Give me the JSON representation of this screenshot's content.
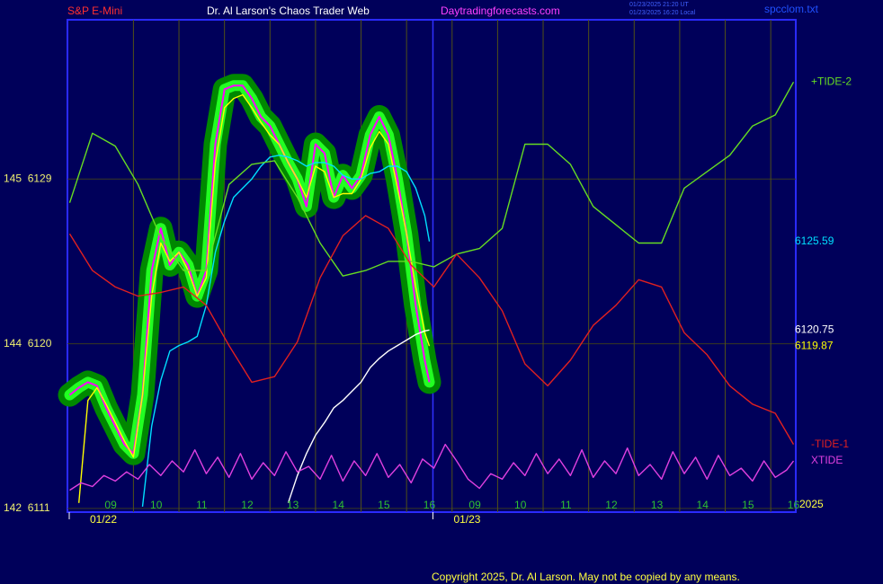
{
  "chart_data": {
    "type": "line",
    "instrument": "S&P E-Mini",
    "title": "Dr. Al Larson's Chaos Trader Web",
    "site": "Daytradingforecasts.com",
    "timestamps": [
      "01/23/2025 21:20 UT",
      "01/23/2025 16:20 Local"
    ],
    "file": "spcclom.txt",
    "year": "2025",
    "copyright": "Copyright 2025, Dr. Al Larson. May not be copied by any means.",
    "dates": [
      "01/22",
      "01/23"
    ],
    "xlim": [
      8.05,
      24.05
    ],
    "ylim": [
      6110.8,
      6137.7
    ],
    "xticks": [
      {
        "value": 9,
        "label": "09"
      },
      10,
      11,
      12,
      13,
      14,
      15,
      16,
      {
        "value": 17,
        "label": "09"
      },
      {
        "value": 18,
        "label": "10"
      },
      {
        "value": 19,
        "label": "11"
      },
      {
        "value": 20,
        "label": "12"
      },
      {
        "value": 21,
        "label": "13"
      },
      {
        "value": 22,
        "label": "14"
      },
      {
        "value": 23,
        "label": "15"
      },
      {
        "value": 24,
        "label": "16"
      }
    ],
    "yticks": [
      {
        "value": 6111,
        "label": "142  6111"
      },
      {
        "value": 6120,
        "label": "144  6120"
      },
      {
        "value": 6129,
        "label": "145  6129"
      }
    ],
    "grid": true,
    "x": [
      8.1,
      8.3,
      8.5,
      8.7,
      8.9,
      9.1,
      9.3,
      9.5,
      9.7,
      9.9,
      10.1,
      10.3,
      10.5,
      10.7,
      10.9,
      11.1,
      11.3,
      11.5,
      11.7,
      11.9,
      12.1,
      12.3,
      12.5,
      12.7,
      12.9,
      13.1,
      13.3,
      13.5,
      13.7,
      13.9,
      14.1,
      14.3,
      14.5,
      14.7,
      14.9,
      15.1,
      15.3,
      15.5,
      15.7,
      15.9,
      16.0
    ],
    "series": [
      {
        "color": "#ff00ff",
        "glow": [
          "#008800",
          "#22ff22"
        ],
        "values": [
          6117.2,
          6117.6,
          6117.9,
          6117.7,
          6116.5,
          6115.5,
          6114.5,
          6114.0,
          6117.2,
          6124.0,
          6126.3,
          6124.3,
          6125.0,
          6124.3,
          6122.6,
          6124.0,
          6130.9,
          6133.9,
          6134.1,
          6134.1,
          6133.4,
          6132.4,
          6131.9,
          6130.9,
          6129.9,
          6129.0,
          6127.5,
          6130.9,
          6130.4,
          6128.0,
          6129.2,
          6128.5,
          6129.2,
          6131.4,
          6132.4,
          6131.4,
          6129.0,
          6126.0,
          6122.1,
          6119.1,
          6117.9
        ]
      },
      {
        "color": "#ffff00",
        "label_end": true,
        "values": [
          null,
          6111.3,
          6116.9,
          6117.6,
          6116.7,
          6115.7,
          6114.7,
          6113.8,
          6117.2,
          6122.6,
          6125.5,
          6124.5,
          6125.0,
          6124.0,
          6122.6,
          6123.6,
          6129.9,
          6132.9,
          6133.4,
          6133.6,
          6132.9,
          6132.1,
          6131.4,
          6130.9,
          6129.9,
          6129.0,
          6128.0,
          6129.7,
          6129.4,
          6128.0,
          6128.2,
          6128.2,
          6129.0,
          6130.7,
          6131.6,
          6130.9,
          6128.5,
          6126.0,
          6123.1,
          6120.6,
          6119.87
        ]
      },
      {
        "color": "#00e0ff",
        "label_end": true,
        "values": [
          null,
          null,
          null,
          null,
          null,
          null,
          null,
          null,
          6111.1,
          6115.5,
          6118.0,
          6119.6,
          6119.9,
          6120.1,
          6120.4,
          6122.1,
          6125.0,
          6126.7,
          6128.0,
          6128.5,
          6129.0,
          6129.7,
          6130.2,
          6130.3,
          6130.2,
          6130.0,
          6129.7,
          6129.9,
          6129.9,
          6129.7,
          6129.2,
          6129.0,
          6129.0,
          6129.3,
          6129.4,
          6129.7,
          6129.7,
          6129.4,
          6128.5,
          6127.0,
          6125.59
        ]
      },
      {
        "color": "#ffffff",
        "label_end": true,
        "values": [
          null,
          null,
          null,
          null,
          null,
          null,
          null,
          null,
          null,
          null,
          null,
          null,
          null,
          null,
          null,
          null,
          null,
          null,
          null,
          null,
          null,
          null,
          null,
          null,
          6111.3,
          6112.8,
          6114.0,
          6115.0,
          6115.7,
          6116.5,
          6116.9,
          6117.4,
          6117.9,
          6118.7,
          6119.2,
          6119.6,
          6119.9,
          6120.2,
          6120.5,
          6120.7,
          6120.75
        ]
      },
      {
        "name": "+TIDE-2",
        "color": "#66dd22",
        "x": [
          8.1,
          8.6,
          9.1,
          9.6,
          10.1,
          10.6,
          11.1,
          11.6,
          12.1,
          12.6,
          13.1,
          13.6,
          14.1,
          14.6,
          15.1,
          15.6,
          16.1,
          16.6,
          17.1,
          17.6,
          18.1,
          18.6,
          19.1,
          19.6,
          20.1,
          20.6,
          21.1,
          21.6,
          22.1,
          22.6,
          23.1,
          23.6,
          24.0
        ],
        "values": [
          6127.7,
          6131.5,
          6130.8,
          6128.7,
          6125.8,
          6124.0,
          6124.0,
          6128.7,
          6129.8,
          6130.0,
          6128.0,
          6125.5,
          6123.7,
          6124.0,
          6124.5,
          6124.5,
          6124.2,
          6124.9,
          6125.2,
          6126.3,
          6130.9,
          6130.9,
          6129.8,
          6127.5,
          6126.5,
          6125.5,
          6125.5,
          6128.5,
          6129.4,
          6130.3,
          6131.9,
          6132.5,
          6134.3
        ]
      },
      {
        "name": "-TIDE-1",
        "color": "#e02020",
        "x": [
          8.1,
          8.6,
          9.1,
          9.6,
          10.1,
          10.6,
          11.1,
          11.6,
          12.1,
          12.6,
          13.1,
          13.6,
          14.1,
          14.6,
          15.1,
          15.6,
          16.1,
          16.6,
          17.1,
          17.6,
          18.1,
          18.6,
          19.1,
          19.6,
          20.1,
          20.6,
          21.1,
          21.6,
          22.1,
          22.6,
          23.1,
          23.6,
          24.0
        ],
        "values": [
          6126.0,
          6124.0,
          6123.1,
          6122.6,
          6122.8,
          6123.1,
          6122.1,
          6119.9,
          6117.9,
          6118.2,
          6120.1,
          6123.6,
          6125.9,
          6127.0,
          6126.3,
          6124.3,
          6123.1,
          6124.9,
          6123.6,
          6121.8,
          6118.9,
          6117.7,
          6119.1,
          6121.0,
          6122.1,
          6123.5,
          6123.1,
          6120.6,
          6119.4,
          6117.7,
          6116.7,
          6116.2,
          6114.5
        ]
      },
      {
        "name": "XTIDE",
        "color": "#e040e0",
        "x": [
          8.1,
          8.35,
          8.6,
          8.85,
          9.1,
          9.35,
          9.6,
          9.85,
          10.1,
          10.35,
          10.6,
          10.85,
          11.1,
          11.35,
          11.6,
          11.85,
          12.1,
          12.35,
          12.6,
          12.85,
          13.1,
          13.35,
          13.6,
          13.85,
          14.1,
          14.35,
          14.6,
          14.85,
          15.1,
          15.35,
          15.6,
          15.85,
          16.1,
          16.35,
          16.6,
          16.85,
          17.1,
          17.35,
          17.6,
          17.85,
          18.1,
          18.35,
          18.6,
          18.85,
          19.1,
          19.35,
          19.6,
          19.85,
          20.1,
          20.35,
          20.6,
          20.85,
          21.1,
          21.35,
          21.6,
          21.85,
          22.1,
          22.35,
          22.6,
          22.85,
          23.1,
          23.35,
          23.6,
          23.85,
          24.0
        ],
        "values": [
          6112.0,
          6112.4,
          6112.2,
          6112.8,
          6112.5,
          6113.0,
          6112.6,
          6113.4,
          6112.8,
          6113.6,
          6113.0,
          6114.2,
          6112.9,
          6113.8,
          6112.7,
          6114.0,
          6112.6,
          6113.5,
          6112.8,
          6114.1,
          6113.0,
          6113.3,
          6112.6,
          6113.9,
          6112.5,
          6113.6,
          6112.8,
          6114.0,
          6112.7,
          6113.4,
          6112.4,
          6113.7,
          6113.2,
          6114.5,
          6113.6,
          6112.6,
          6112.1,
          6112.9,
          6112.6,
          6113.5,
          6112.8,
          6114.0,
          6112.9,
          6113.7,
          6112.8,
          6114.2,
          6112.7,
          6113.6,
          6112.9,
          6114.3,
          6112.8,
          6113.4,
          6112.6,
          6114.1,
          6112.9,
          6113.8,
          6112.6,
          6113.9,
          6112.8,
          6113.2,
          6112.5,
          6113.6,
          6112.7,
          6113.1,
          6113.6
        ]
      }
    ]
  }
}
